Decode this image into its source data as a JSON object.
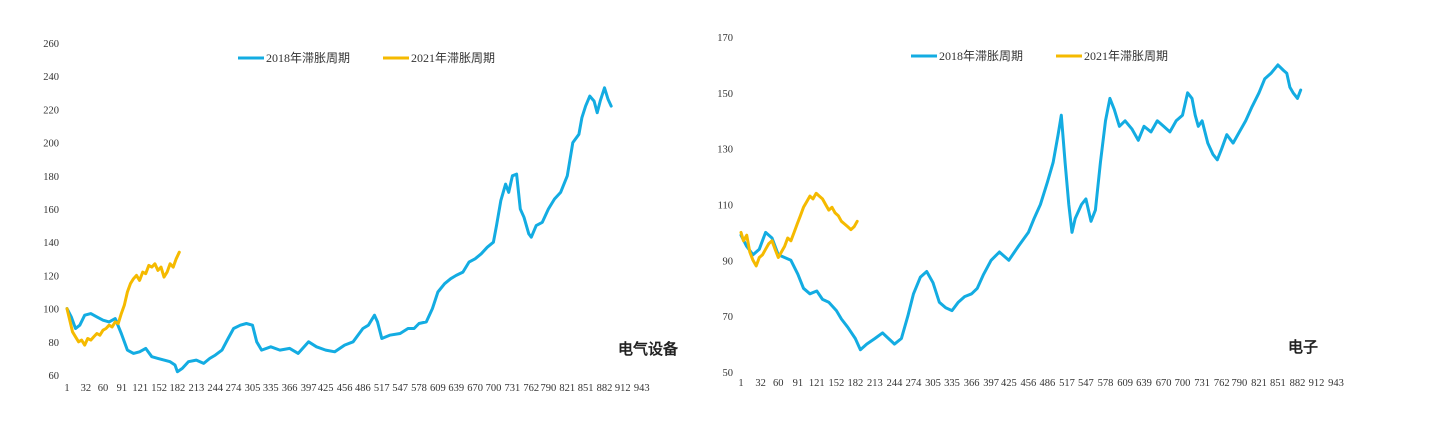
{
  "series_styles": {
    "series_2018": {
      "name": "2018年滞胀周期",
      "color": "#13ACE2"
    },
    "series_2021": {
      "name": "2021年滞胀周期",
      "color": "#F5BA00"
    }
  },
  "chart_data": [
    {
      "type": "line",
      "title": "电气设备",
      "ylim": [
        60,
        260
      ],
      "yticks": [
        60,
        80,
        100,
        120,
        140,
        160,
        180,
        200,
        220,
        240,
        260
      ],
      "xlim": [
        1,
        973
      ],
      "xticks": [
        1,
        32,
        60,
        91,
        121,
        152,
        182,
        213,
        244,
        274,
        305,
        335,
        366,
        397,
        425,
        456,
        486,
        517,
        547,
        578,
        609,
        639,
        670,
        700,
        731,
        762,
        790,
        821,
        851,
        882,
        912,
        943
      ],
      "legend_position": "top-center",
      "grid": false,
      "series": [
        {
          "name": "2018年滞胀周期",
          "x": [
            1,
            8,
            15,
            22,
            30,
            40,
            50,
            60,
            70,
            80,
            90,
            100,
            110,
            120,
            130,
            140,
            150,
            160,
            170,
            178,
            182,
            190,
            200,
            213,
            225,
            235,
            244,
            255,
            265,
            274,
            285,
            295,
            305,
            312,
            320,
            335,
            350,
            366,
            380,
            397,
            410,
            425,
            440,
            456,
            470,
            486,
            495,
            505,
            510,
            517,
            530,
            547,
            560,
            570,
            578,
            590,
            600,
            609,
            620,
            630,
            639,
            650,
            660,
            670,
            680,
            690,
            700,
            705,
            712,
            720,
            725,
            731,
            738,
            744,
            750,
            758,
            762,
            770,
            780,
            790,
            800,
            810,
            821,
            830,
            840,
            845,
            851,
            858,
            865,
            870,
            875,
            882,
            888,
            893
          ],
          "values": [
            100,
            95,
            88,
            90,
            96,
            97,
            95,
            93,
            92,
            94,
            85,
            75,
            73,
            74,
            76,
            71,
            70,
            69,
            68,
            66,
            62,
            64,
            68,
            69,
            67,
            70,
            72,
            75,
            82,
            88,
            90,
            91,
            90,
            80,
            75,
            77,
            75,
            76,
            73,
            80,
            77,
            75,
            74,
            78,
            80,
            88,
            90,
            96,
            92,
            82,
            84,
            85,
            88,
            88,
            91,
            92,
            100,
            110,
            115,
            118,
            120,
            122,
            128,
            130,
            133,
            137,
            140,
            150,
            165,
            175,
            170,
            180,
            181,
            160,
            155,
            145,
            143,
            150,
            152,
            160,
            166,
            170,
            180,
            200,
            205,
            215,
            222,
            228,
            225,
            218,
            225,
            233,
            226,
            222
          ]
        },
        {
          "name": "2021年滞胀周期",
          "x": [
            1,
            5,
            10,
            15,
            20,
            25,
            30,
            35,
            40,
            45,
            50,
            55,
            60,
            65,
            70,
            75,
            80,
            85,
            90,
            95,
            100,
            105,
            110,
            115,
            120,
            125,
            130,
            135,
            140,
            145,
            150,
            155,
            160,
            165,
            170,
            175,
            180,
            185
          ],
          "values": [
            100,
            94,
            86,
            83,
            80,
            81,
            78,
            82,
            81,
            83,
            85,
            84,
            87,
            88,
            90,
            89,
            92,
            91,
            97,
            102,
            110,
            115,
            118,
            120,
            117,
            122,
            121,
            126,
            125,
            127,
            123,
            125,
            119,
            122,
            127,
            125,
            130,
            134
          ]
        }
      ]
    },
    {
      "type": "line",
      "title": "电子",
      "ylim": [
        50,
        170
      ],
      "yticks": [
        50,
        70,
        90,
        110,
        130,
        150,
        170
      ],
      "xlim": [
        1,
        973
      ],
      "xticks": [
        1,
        32,
        60,
        91,
        121,
        152,
        182,
        213,
        244,
        274,
        305,
        335,
        366,
        397,
        425,
        456,
        486,
        517,
        547,
        578,
        609,
        639,
        670,
        700,
        731,
        762,
        790,
        821,
        851,
        882,
        912,
        943
      ],
      "legend_position": "top-center",
      "grid": false,
      "series": [
        {
          "name": "2018年滞胀周期",
          "x": [
            1,
            10,
            20,
            30,
            40,
            50,
            60,
            70,
            80,
            91,
            100,
            110,
            121,
            130,
            140,
            152,
            160,
            170,
            182,
            190,
            200,
            213,
            225,
            244,
            255,
            265,
            274,
            285,
            295,
            305,
            315,
            325,
            335,
            345,
            355,
            366,
            375,
            385,
            397,
            410,
            425,
            440,
            456,
            465,
            475,
            486,
            495,
            503,
            508,
            514,
            520,
            525,
            530,
            540,
            547,
            555,
            562,
            570,
            578,
            585,
            592,
            600,
            609,
            620,
            630,
            639,
            650,
            660,
            670,
            680,
            690,
            700,
            708,
            715,
            720,
            725,
            731,
            740,
            748,
            755,
            762,
            770,
            780,
            790,
            800,
            810,
            821,
            830,
            840,
            851,
            860,
            865,
            870,
            875,
            882,
            887
          ],
          "values": [
            99,
            95,
            92,
            94,
            100,
            98,
            92,
            91,
            90,
            85,
            80,
            78,
            79,
            76,
            75,
            72,
            69,
            66,
            62,
            58,
            60,
            62,
            64,
            60,
            62,
            70,
            78,
            84,
            86,
            82,
            75,
            73,
            72,
            75,
            77,
            78,
            80,
            85,
            90,
            93,
            90,
            95,
            100,
            105,
            110,
            118,
            125,
            135,
            142,
            125,
            110,
            100,
            105,
            110,
            112,
            104,
            108,
            125,
            140,
            148,
            144,
            138,
            140,
            137,
            133,
            138,
            136,
            140,
            138,
            136,
            140,
            142,
            150,
            148,
            142,
            138,
            140,
            132,
            128,
            126,
            130,
            135,
            132,
            136,
            140,
            145,
            150,
            155,
            157,
            160,
            158,
            157,
            152,
            150,
            148,
            151
          ]
        },
        {
          "name": "2021年滞胀周期",
          "x": [
            1,
            5,
            10,
            15,
            20,
            25,
            30,
            35,
            40,
            45,
            50,
            55,
            60,
            65,
            70,
            75,
            80,
            85,
            90,
            95,
            100,
            105,
            110,
            115,
            120,
            125,
            130,
            135,
            140,
            145,
            150,
            155,
            160,
            165,
            170,
            175,
            180,
            185
          ],
          "values": [
            100,
            97,
            99,
            93,
            90,
            88,
            91,
            92,
            94,
            96,
            97,
            94,
            91,
            93,
            95,
            98,
            97,
            100,
            103,
            106,
            109,
            111,
            113,
            112,
            114,
            113,
            112,
            110,
            108,
            109,
            107,
            106,
            104,
            103,
            102,
            101,
            102,
            104
          ]
        }
      ]
    }
  ]
}
